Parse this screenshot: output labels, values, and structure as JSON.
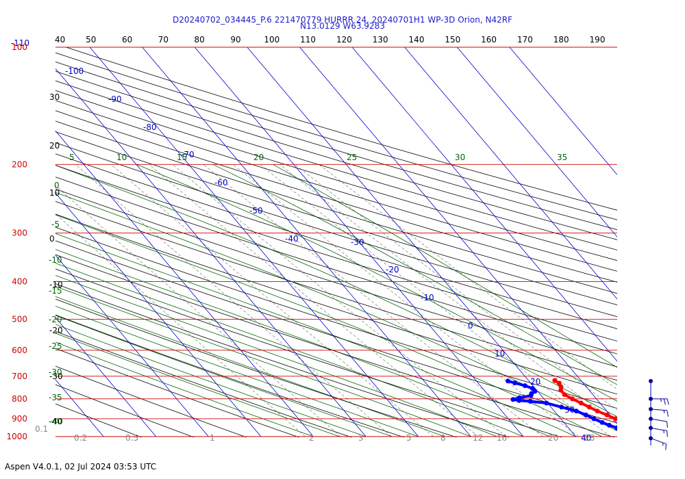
{
  "title_line1": "D20240702_034445_P.6 221470779 HURRR 24, 20240701H1 WP-3D Orion, N42RF",
  "title_line2": "N13.0129 W63.9283",
  "footer": "Aspen V4.0.1, 02 Jul 2024  03:53 UTC",
  "colors": {
    "isobar": "#cc0000",
    "isotherm": "#0000cc",
    "dry_adiabat": "#000000",
    "moist_adiabat": "#006600",
    "mixing_ratio": "#888888",
    "temperature_trace": "#ff0000",
    "dewpoint_trace": "#0000ff",
    "wind_barb": "#000099"
  },
  "chart_data": {
    "type": "line",
    "diagram": "skew-T log-p",
    "pressure_levels": [
      "100",
      "200",
      "300",
      "400",
      "500",
      "600",
      "700",
      "800",
      "900",
      "1000"
    ],
    "pressure_range_top_label": "-110",
    "top_scale_labels": [
      "40",
      "50",
      "60",
      "70",
      "80",
      "90",
      "100",
      "110",
      "120",
      "130",
      "140",
      "150",
      "160",
      "170",
      "180",
      "190"
    ],
    "dry_adiabat_labels": [
      "30",
      "20",
      "10",
      "0",
      "-10",
      "-20",
      "-30",
      "-40"
    ],
    "isotherm_labels": [
      "-100",
      "-90",
      "-80",
      "-70",
      "-60",
      "-50",
      "-40",
      "-30",
      "-20",
      "-10",
      "0",
      "10",
      "20",
      "30",
      "40"
    ],
    "moist_adiabat_labels": [
      "5",
      "10",
      "15",
      "20",
      "25",
      "30",
      "35",
      "0",
      "-5",
      "-10",
      "-15",
      "-20",
      "-25",
      "-30",
      "-35",
      "-40"
    ],
    "mixing_ratio_labels": [
      "0.1",
      "0.2",
      "0.5",
      "1",
      "2",
      "3",
      "5",
      "8",
      "12",
      "16",
      "20",
      "28"
    ],
    "series": [
      {
        "name": "",
        "kind": "temperature",
        "points": [
          [
            1012,
            27.5
          ],
          [
            1000,
            26.5
          ],
          [
            990,
            25.8
          ],
          [
            975,
            24.8
          ],
          [
            960,
            24.0
          ],
          [
            950,
            23.3
          ],
          [
            935,
            22.3
          ],
          [
            920,
            21.5
          ],
          [
            900,
            20.4
          ],
          [
            880,
            19.4
          ],
          [
            860,
            18.2
          ],
          [
            840,
            17.3
          ],
          [
            820,
            16.4
          ],
          [
            800,
            15.4
          ],
          [
            780,
            14.6
          ],
          [
            760,
            14.6
          ],
          [
            745,
            15.2
          ],
          [
            730,
            15.4
          ],
          [
            718,
            15.0
          ]
        ]
      },
      {
        "name": "",
        "kind": "dewpoint",
        "points": [
          [
            1012,
            22.8
          ],
          [
            1000,
            22.5
          ],
          [
            990,
            22.3
          ],
          [
            975,
            21.3
          ],
          [
            960,
            20.2
          ],
          [
            950,
            19.2
          ],
          [
            935,
            18.2
          ],
          [
            920,
            17.3
          ],
          [
            900,
            16.3
          ],
          [
            880,
            15.4
          ],
          [
            860,
            14.2
          ],
          [
            840,
            12.0
          ],
          [
            820,
            9.8
          ],
          [
            812,
            7.0
          ],
          [
            808,
            5.0
          ],
          [
            803,
            4.0
          ],
          [
            795,
            5.5
          ],
          [
            785,
            8.0
          ],
          [
            775,
            8.5
          ],
          [
            765,
            9.5
          ],
          [
            752,
            9.5
          ],
          [
            740,
            8.5
          ],
          [
            728,
            7.0
          ],
          [
            720,
            6.0
          ]
        ]
      }
    ],
    "wind_barbs": [
      {
        "pressure": 1010,
        "speed_kt": 15,
        "direction_deg": 110
      },
      {
        "pressure": 950,
        "speed_kt": 15,
        "direction_deg": 100
      },
      {
        "pressure": 900,
        "speed_kt": 10,
        "direction_deg": 100
      },
      {
        "pressure": 850,
        "speed_kt": 15,
        "direction_deg": 95
      },
      {
        "pressure": 800,
        "speed_kt": 25,
        "direction_deg": 90
      },
      {
        "pressure": 720,
        "speed_kt": 0,
        "direction_deg": 0
      }
    ]
  }
}
